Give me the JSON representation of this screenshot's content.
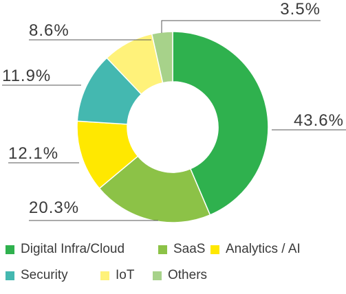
{
  "chart_data": {
    "type": "pie",
    "donut": true,
    "title": "",
    "unit": "%",
    "legend_position": "bottom",
    "slices": [
      {
        "name": "Digital Infra/Cloud",
        "value": 43.6,
        "label": "43.6%",
        "color": "#2fb14e"
      },
      {
        "name": "SaaS",
        "value": 20.3,
        "label": "20.3%",
        "color": "#8cc247"
      },
      {
        "name": "Analytics / AI",
        "value": 12.1,
        "label": "12.1%",
        "color": "#ffe800"
      },
      {
        "name": "Security",
        "value": 11.9,
        "label": "11.9%",
        "color": "#44b8b0"
      },
      {
        "name": "IoT",
        "value": 8.6,
        "label": "8.6%",
        "color": "#fff27a"
      },
      {
        "name": "Others",
        "value": 3.5,
        "label": "3.5%",
        "color": "#a7d28a"
      }
    ]
  }
}
